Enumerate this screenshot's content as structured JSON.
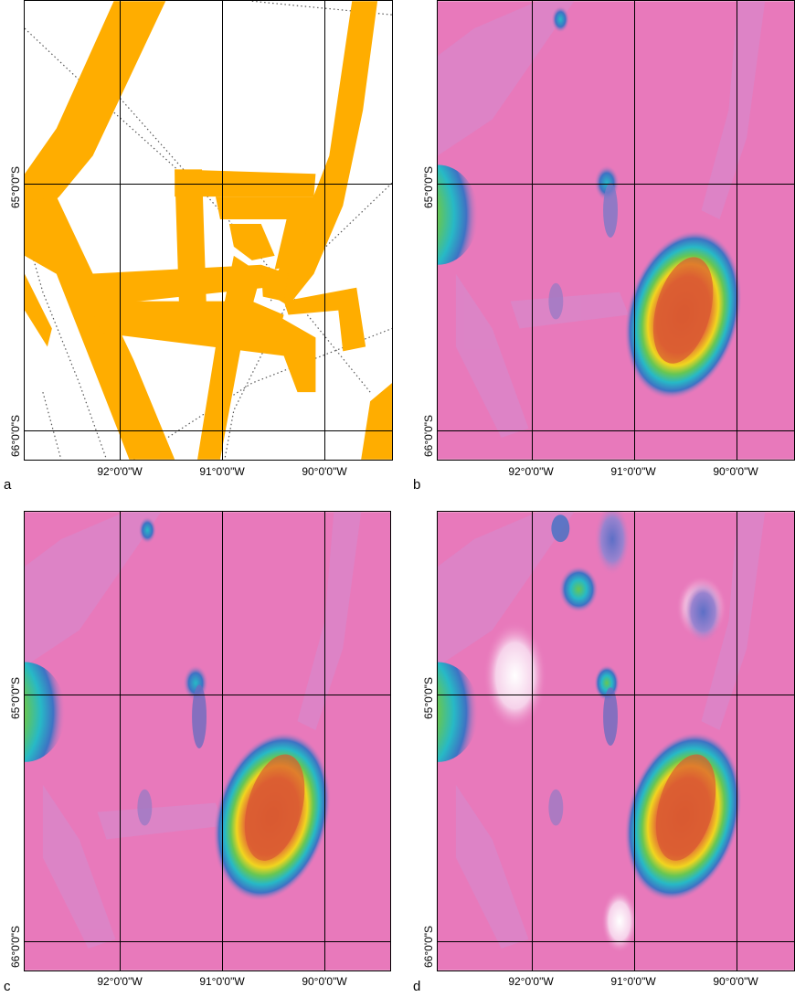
{
  "panels": [
    {
      "id": "a",
      "letter": "a",
      "style": "coverage",
      "lat_labels": [
        "65°0'0\"S",
        "66°0'0\"S"
      ],
      "lon_labels": [
        "92°0'0\"W",
        "91°0'0\"W",
        "90°0'0\"W"
      ]
    },
    {
      "id": "b",
      "letter": "b",
      "style": "relief",
      "lat_labels": [
        "65°0'0\"S",
        "66°0'0\"S"
      ],
      "lon_labels": [
        "92°0'0\"W",
        "91°0'0\"W",
        "90°0'0\"W"
      ]
    },
    {
      "id": "c",
      "letter": "c",
      "style": "relief",
      "lat_labels": [
        "65°0'0\"S",
        "66°0'0\"S"
      ],
      "lon_labels": [
        "92°0'0\"W",
        "91°0'0\"W",
        "90°0'0\"W"
      ]
    },
    {
      "id": "d",
      "letter": "d",
      "style": "relief-extra",
      "lat_labels": [
        "65°0'0\"S",
        "66°0'0\"S"
      ],
      "lon_labels": [
        "92°0'0\"W",
        "91°0'0\"W",
        "90°0'0\"W"
      ]
    }
  ],
  "colors": {
    "coverage_track": "#ffad00",
    "background_magenta": "#e879bb",
    "grid": "#000000"
  }
}
